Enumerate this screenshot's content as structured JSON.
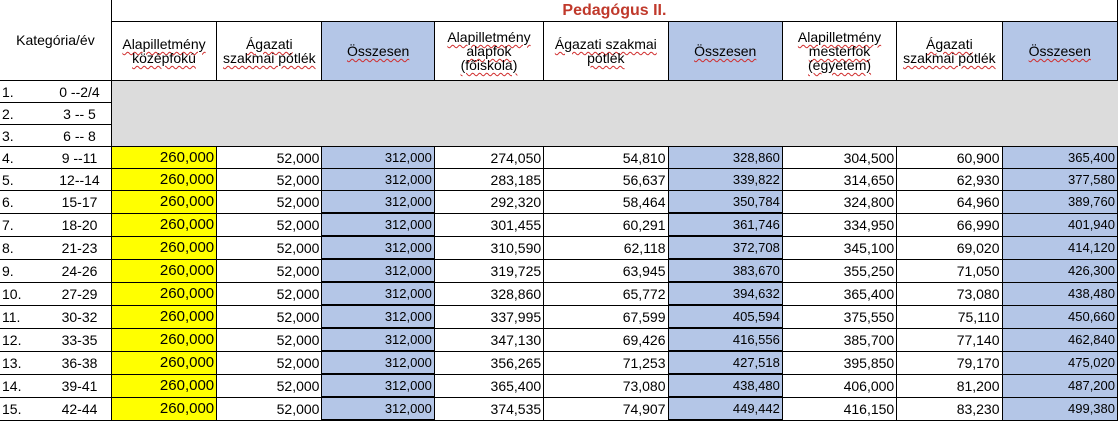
{
  "table": {
    "title": "Pedagógus II.",
    "corner_label": "Kategória/év",
    "headers": [
      "Alapilletmény középfokú",
      "Ágazati szakmai pótlék",
      "Összesen",
      "Alapilletmény alapfok (főiskola)",
      "Ágazati szakmai pótlék",
      "Összesen",
      "Alapilletmény mesterfok (egyetem)",
      "Ágazati szakmai pótlék",
      "Összesen"
    ],
    "empty_rows": [
      {
        "kat": "1.",
        "ev": "0 --2/4"
      },
      {
        "kat": "2.",
        "ev": "3 -- 5"
      },
      {
        "kat": "3.",
        "ev": "6 -- 8"
      }
    ],
    "rows": [
      {
        "kat": "4.",
        "ev": "9 --11",
        "v": [
          "260,000",
          "52,000",
          "312,000",
          "274,050",
          "54,810",
          "328,860",
          "304,500",
          "60,900",
          "365,400"
        ]
      },
      {
        "kat": "5.",
        "ev": "12--14",
        "v": [
          "260,000",
          "52,000",
          "312,000",
          "283,185",
          "56,637",
          "339,822",
          "314,650",
          "62,930",
          "377,580"
        ]
      },
      {
        "kat": "6.",
        "ev": "15-17",
        "v": [
          "260,000",
          "52,000",
          "312,000",
          "292,320",
          "58,464",
          "350,784",
          "324,800",
          "64,960",
          "389,760"
        ]
      },
      {
        "kat": "7.",
        "ev": "18-20",
        "v": [
          "260,000",
          "52,000",
          "312,000",
          "301,455",
          "60,291",
          "361,746",
          "334,950",
          "66,990",
          "401,940"
        ]
      },
      {
        "kat": "8.",
        "ev": "21-23",
        "v": [
          "260,000",
          "52,000",
          "312,000",
          "310,590",
          "62,118",
          "372,708",
          "345,100",
          "69,020",
          "414,120"
        ]
      },
      {
        "kat": "9.",
        "ev": "24-26",
        "v": [
          "260,000",
          "52,000",
          "312,000",
          "319,725",
          "63,945",
          "383,670",
          "355,250",
          "71,050",
          "426,300"
        ]
      },
      {
        "kat": "10.",
        "ev": "27-29",
        "v": [
          "260,000",
          "52,000",
          "312,000",
          "328,860",
          "65,772",
          "394,632",
          "365,400",
          "73,080",
          "438,480"
        ]
      },
      {
        "kat": "11.",
        "ev": "30-32",
        "v": [
          "260,000",
          "52,000",
          "312,000",
          "337,995",
          "67,599",
          "405,594",
          "375,550",
          "75,110",
          "450,660"
        ]
      },
      {
        "kat": "12.",
        "ev": "33-35",
        "v": [
          "260,000",
          "52,000",
          "312,000",
          "347,130",
          "69,426",
          "416,556",
          "385,700",
          "77,140",
          "462,840"
        ]
      },
      {
        "kat": "13.",
        "ev": "36-38",
        "v": [
          "260,000",
          "52,000",
          "312,000",
          "356,265",
          "71,253",
          "427,518",
          "395,850",
          "79,170",
          "475,020"
        ]
      },
      {
        "kat": "14.",
        "ev": "39-41",
        "v": [
          "260,000",
          "52,000",
          "312,000",
          "365,400",
          "73,080",
          "438,480",
          "406,000",
          "81,200",
          "487,200"
        ]
      },
      {
        "kat": "15.",
        "ev": "42-44",
        "v": [
          "260,000",
          "52,000",
          "312,000",
          "374,535",
          "74,907",
          "449,442",
          "416,150",
          "83,230",
          "499,380"
        ]
      }
    ]
  },
  "colors": {
    "title_red": "#c0392b",
    "highlight_yellow": "#ffff00",
    "total_blue": "#b4c6e7",
    "empty_grey": "#dcdcdc"
  }
}
